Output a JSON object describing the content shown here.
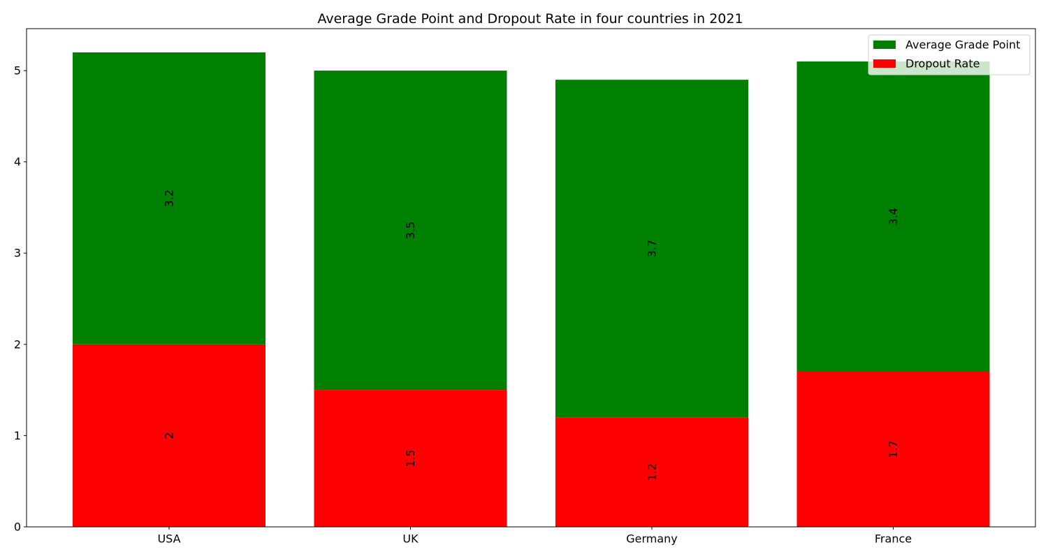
{
  "chart_data": {
    "type": "bar",
    "stacked": true,
    "title": "Average Grade Point and Dropout Rate in four countries in 2021",
    "xlabel": "",
    "ylabel": "",
    "categories": [
      "USA",
      "UK",
      "Germany",
      "France"
    ],
    "series": [
      {
        "name": "Dropout Rate",
        "values": [
          2,
          1.5,
          1.2,
          1.7
        ],
        "color": "#ff0000"
      },
      {
        "name": "Average Grade Point",
        "values": [
          3.2,
          3.5,
          3.7,
          3.4
        ],
        "color": "#008000"
      }
    ],
    "data_labels": {
      "Dropout Rate": [
        "2",
        "1.5",
        "1.2",
        "1.7"
      ],
      "Average Grade Point": [
        "3.2",
        "3.5",
        "3.7",
        "3.4"
      ]
    },
    "ylim": [
      0,
      5.46
    ],
    "yticks": [
      0,
      1,
      2,
      3,
      4,
      5
    ],
    "ytick_labels": [
      "0",
      "1",
      "2",
      "3",
      "4",
      "5"
    ],
    "legend": {
      "position": "top-right",
      "entries": [
        {
          "label": "Average Grade Point",
          "color": "#008000"
        },
        {
          "label": "Dropout Rate",
          "color": "#ff0000"
        }
      ]
    },
    "grid": false
  }
}
